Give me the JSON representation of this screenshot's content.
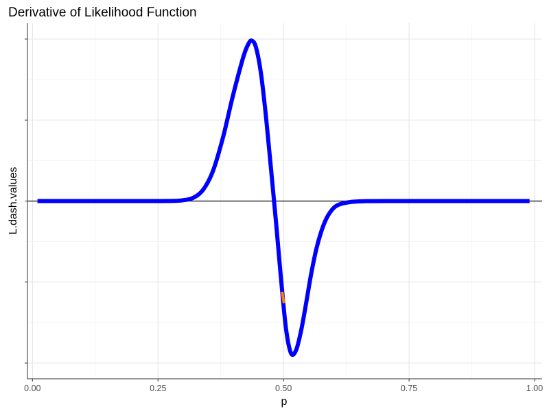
{
  "chart_data": {
    "type": "line",
    "title": "Derivative of Likelihood Function",
    "xlabel": "p",
    "ylabel": "L.dash.values",
    "xlim": [
      -0.01,
      1.015
    ],
    "ylim": [
      -1.0,
      1.0
    ],
    "x_ticks": [
      {
        "value": 0.0,
        "label": "0.00"
      },
      {
        "value": 0.25,
        "label": "0.25"
      },
      {
        "value": 0.5,
        "label": "0.50"
      },
      {
        "value": 0.75,
        "label": "0.75"
      },
      {
        "value": 1.0,
        "label": "1.00"
      }
    ],
    "y_ticks": [
      -1.0,
      -0.5,
      0.0,
      0.5,
      1.0
    ],
    "y_tick_labels_shown": false,
    "grid": true,
    "hline_y": 0,
    "series": [
      {
        "color": "#0000ff",
        "x": [
          0.01,
          0.1,
          0.2,
          0.25,
          0.28,
          0.3,
          0.32,
          0.34,
          0.36,
          0.38,
          0.4,
          0.42,
          0.43,
          0.437,
          0.445,
          0.455,
          0.465,
          0.475,
          0.485,
          0.495,
          0.505,
          0.515,
          0.525,
          0.535,
          0.545,
          0.555,
          0.565,
          0.575,
          0.585,
          0.595,
          0.605,
          0.62,
          0.64,
          0.66,
          0.7,
          0.8,
          0.9,
          0.99
        ],
        "y": [
          0.0,
          0.0,
          0.0,
          0.0,
          0.001,
          0.005,
          0.02,
          0.07,
          0.19,
          0.4,
          0.66,
          0.89,
          0.97,
          0.99,
          0.95,
          0.79,
          0.52,
          0.2,
          -0.13,
          -0.48,
          -0.79,
          -0.94,
          -0.92,
          -0.8,
          -0.63,
          -0.45,
          -0.3,
          -0.19,
          -0.11,
          -0.06,
          -0.03,
          -0.013,
          -0.004,
          -0.001,
          0.0,
          0.0,
          0.0,
          0.0
        ]
      },
      {
        "color": "#ff7f00",
        "x": [
          0.497,
          0.501
        ],
        "y": [
          -0.56,
          -0.63
        ]
      }
    ]
  }
}
